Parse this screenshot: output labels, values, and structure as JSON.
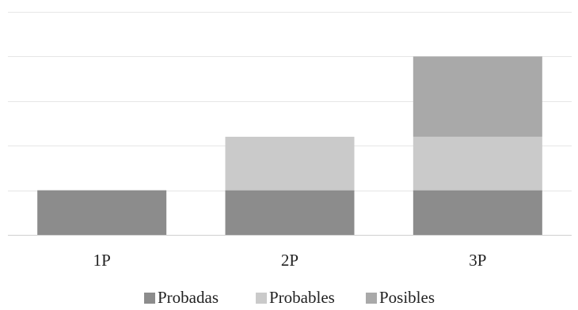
{
  "chart_data": {
    "type": "bar",
    "stacked": true,
    "categories": [
      "1P",
      "2P",
      "3P"
    ],
    "series": [
      {
        "name": "Probadas",
        "color": "#8c8c8c",
        "values": [
          1,
          1,
          1
        ]
      },
      {
        "name": "Probables",
        "color": "#cacaca",
        "values": [
          0,
          1.2,
          1.2
        ]
      },
      {
        "name": "Posibles",
        "color": "#a9a9a9",
        "values": [
          0,
          0,
          1.8
        ]
      }
    ],
    "ylim": [
      0,
      5
    ],
    "y_gridlines": [
      1,
      2,
      3,
      4,
      5
    ],
    "y_tick_labels_shown": false,
    "gridline_color": "#e6e6e6",
    "axis_color": "#d0d0d0",
    "legend_position": "bottom",
    "title": "",
    "xlabel": "",
    "ylabel": ""
  }
}
